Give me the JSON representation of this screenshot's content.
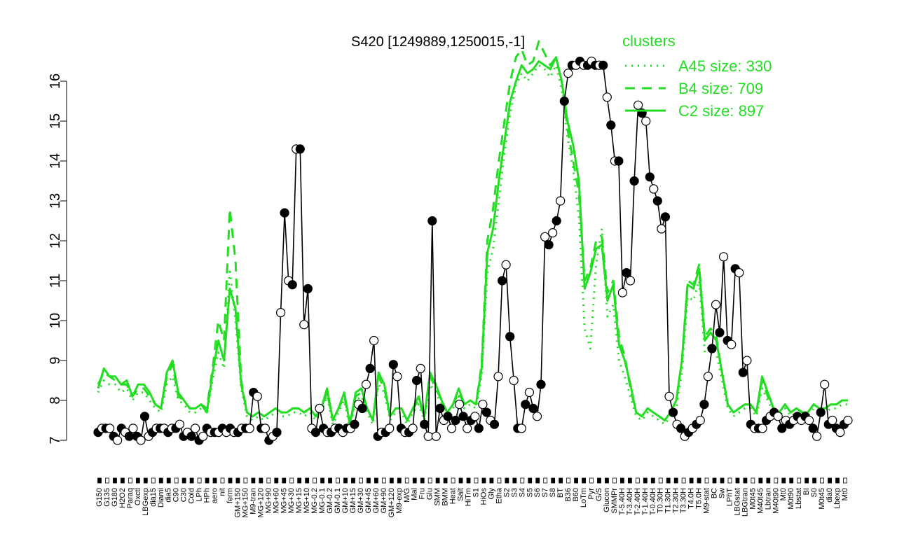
{
  "chart_data": {
    "type": "line",
    "title": "S420 [1249889,1250015,-1]",
    "ylim": [
      7,
      16.5
    ],
    "y_ticks": [
      7,
      8,
      9,
      10,
      11,
      12,
      13,
      14,
      15,
      16
    ],
    "legend": {
      "title": "clusters",
      "placement": "top-right",
      "color": "#22dd22",
      "entries": [
        {
          "label": "A45 size: 330",
          "style": "dotted"
        },
        {
          "label": "B4 size: 709",
          "style": "dashed"
        },
        {
          "label": "C2 size: 897",
          "style": "solid"
        }
      ]
    },
    "x_labels": [
      "G150",
      "G135",
      "G180",
      "H2O2",
      "Paraq",
      "Oxctl",
      "LBGexp",
      "dia15",
      "Diami",
      "dia5",
      "C90",
      "C30",
      "Cold",
      "LPh",
      "HPh",
      "aero",
      "nit",
      "ferm",
      "GM+150",
      "MG+150",
      "M9-tran",
      "MG+120",
      "MG+90",
      "MG+60",
      "MG+45",
      "MG+30",
      "MG+15",
      "MG+10",
      "MG-0.2",
      "MG-0.1",
      "GM-0.2",
      "GM-0.1",
      "GM+10",
      "GM+15",
      "GM+30",
      "GM+45",
      "GM+60",
      "GM+90",
      "GM+120",
      "M9-exp",
      "M/G",
      "Mal",
      "Fru",
      "Glu",
      "SMM",
      "BMM",
      "Heat",
      "Salt",
      "HiTm",
      "S1",
      "HiOs",
      "Gly",
      "Etha",
      "S2",
      "S3",
      "S4",
      "S5",
      "S6",
      "S7",
      "S8",
      "BT",
      "B36",
      "B60",
      "LoTm",
      "Pyr",
      "G/S",
      "Glucon",
      "SMMPr",
      "T-5.40H",
      "T-3.40H",
      "T-2.40H",
      "T-1.40H",
      "T-0.40H",
      "T0.30H",
      "T1.30H",
      "T2.30H",
      "T3.30H",
      "T4.0H",
      "T5.0H",
      "M9-stat",
      "BC",
      "Sw",
      "LPhT",
      "LBGstat",
      "LBGtran",
      "M0t45",
      "M40t45",
      "Lbtran",
      "M40t90",
      "Mt0",
      "M0t90",
      "Lbstat",
      "BI",
      "S0",
      "M0t45",
      "dia0",
      "Lbexp",
      "Mt0"
    ],
    "series": [
      {
        "name": "S420",
        "color": "#000000",
        "values": [
          7.2,
          7.3,
          7.3,
          7.3,
          7.1,
          7.0,
          7.3,
          7.2,
          7.1,
          7.3,
          7.1,
          7.0,
          7.6,
          7.1,
          7.2,
          7.3,
          7.3,
          7.3,
          7.2,
          7.3,
          7.3,
          7.4,
          7.1,
          7.2,
          7.1,
          7.3,
          7.0,
          7.1,
          7.3,
          7.2,
          7.2,
          7.2,
          7.3,
          7.2,
          7.3,
          7.2,
          7.2,
          7.3,
          7.3,
          7.3,
          8.2,
          8.1,
          7.3,
          7.3,
          7.0,
          7.1,
          7.2,
          10.2,
          12.7,
          11.0,
          10.9,
          14.3,
          14.3,
          9.9,
          10.8,
          7.3,
          7.2,
          7.8,
          7.3,
          7.2,
          7.2,
          7.3,
          7.3,
          7.2,
          7.3,
          7.3,
          7.4,
          7.9,
          7.8,
          8.4,
          8.8,
          9.5,
          7.1,
          7.2,
          7.2,
          7.3,
          8.9,
          8.6,
          7.3,
          7.2,
          7.2,
          7.3,
          8.5,
          8.8,
          7.4,
          7.1,
          12.5,
          7.1,
          7.8,
          7.5,
          7.6,
          7.3,
          7.5,
          7.9,
          7.6,
          7.3,
          7.5,
          7.6,
          7.3,
          7.9,
          7.7,
          7.5,
          7.4,
          8.6,
          11.0,
          11.4,
          9.6,
          8.5,
          7.3,
          7.3,
          7.9,
          8.2,
          7.8,
          7.6,
          8.4,
          12.1,
          11.9,
          12.2,
          12.5,
          13.0,
          15.5,
          16.2,
          16.4,
          16.4,
          16.5,
          16.4,
          16.4,
          16.5,
          16.4,
          16.4,
          16.4,
          15.6,
          14.9,
          14.0,
          14.0,
          10.7,
          11.2,
          11.0,
          13.5,
          15.4,
          15.2,
          15.0,
          13.6,
          13.3,
          13.0,
          12.3,
          12.6,
          8.1,
          7.7,
          7.4,
          7.3,
          7.1,
          7.2,
          7.3,
          7.4,
          7.5,
          7.9,
          8.6,
          9.3,
          10.4,
          9.7,
          11.6,
          9.5,
          9.4,
          11.3,
          11.2,
          8.7,
          9.0,
          7.4,
          7.3,
          7.3,
          7.3,
          7.5,
          7.6,
          7.7,
          7.6,
          7.3,
          7.5,
          7.4,
          7.5,
          7.6,
          7.5,
          7.6,
          7.5,
          7.3,
          7.1,
          7.7,
          8.4,
          7.4,
          7.5,
          7.3,
          7.2,
          7.4,
          7.5
        ]
      },
      {
        "name": "C2 size: 897",
        "color": "#22dd22",
        "style": "solid",
        "values": [
          8.3,
          8.8,
          8.6,
          8.6,
          8.4,
          8.5,
          8.1,
          8.4,
          8.4,
          8.2,
          7.9,
          7.8,
          8.7,
          9.0,
          8.2,
          8.0,
          7.8,
          7.8,
          7.9,
          7.7,
          8.7,
          9.5,
          9.0,
          10.8,
          10.3,
          8.4,
          7.7,
          7.6,
          7.7,
          7.6,
          7.7,
          7.8,
          7.7,
          7.7,
          7.8,
          7.8,
          7.7,
          7.8,
          7.6,
          7.8,
          8.3,
          7.5,
          7.8,
          8.2,
          7.4,
          8.2,
          8.3,
          7.8,
          7.5,
          8.7,
          8.4,
          7.6,
          7.8,
          7.8,
          7.5,
          7.8,
          8.1,
          7.6,
          8.7,
          8.4,
          8.0,
          7.7,
          7.9,
          8.3,
          7.9,
          8.0,
          7.9,
          8.8,
          11.7,
          12.3,
          13.5,
          14.5,
          15.5,
          16.0,
          16.4,
          16.2,
          16.3,
          16.5,
          16.4,
          16.3,
          16.6,
          16.0,
          15.0,
          14.4,
          13.5,
          10.8,
          11.2,
          11.8,
          11.9,
          10.5,
          10.9,
          9.4,
          9.0,
          8.4,
          7.7,
          7.6,
          7.8,
          7.7,
          7.6,
          7.5,
          7.7,
          8.0,
          9.0,
          10.9,
          10.8,
          11.3,
          9.5,
          9.7,
          9.5,
          8.7,
          7.9,
          7.7,
          7.8,
          7.9,
          7.9,
          7.7,
          8.6,
          8.2,
          7.8,
          7.7,
          7.9,
          7.7,
          7.8,
          7.7,
          7.7,
          7.9,
          7.8,
          7.8,
          7.9,
          7.9,
          8.0,
          8.0
        ]
      },
      {
        "name": "B4 size: 709",
        "color": "#22dd22",
        "style": "dashed",
        "values": [
          8.4,
          8.7,
          8.6,
          8.5,
          8.4,
          8.4,
          8.1,
          8.3,
          8.3,
          8.1,
          7.9,
          7.8,
          8.6,
          8.9,
          8.1,
          8.0,
          7.8,
          7.8,
          7.9,
          7.8,
          8.8,
          10.0,
          9.5,
          12.8,
          11.5,
          8.5,
          7.7,
          7.6,
          7.7,
          7.6,
          7.7,
          7.8,
          7.7,
          7.7,
          7.8,
          7.8,
          7.7,
          7.8,
          7.6,
          7.8,
          8.2,
          7.5,
          7.8,
          8.1,
          7.4,
          8.1,
          8.2,
          7.8,
          7.5,
          8.6,
          8.3,
          7.6,
          7.8,
          7.8,
          7.5,
          7.8,
          8.0,
          7.6,
          8.6,
          8.3,
          8.0,
          7.7,
          7.9,
          8.2,
          7.9,
          8.0,
          7.9,
          8.9,
          12.0,
          12.8,
          14.0,
          15.0,
          16.0,
          16.6,
          16.8,
          16.4,
          16.5,
          17.0,
          16.7,
          16.4,
          16.6,
          16.0,
          14.8,
          14.0,
          13.2,
          11.0,
          11.3,
          12.0,
          12.1,
          10.7,
          11.0,
          9.6,
          9.1,
          8.3,
          7.7,
          7.6,
          7.8,
          7.7,
          7.6,
          7.5,
          7.7,
          8.0,
          9.0,
          11.0,
          10.9,
          11.4,
          9.6,
          9.8,
          9.6,
          8.7,
          7.9,
          7.7,
          7.8,
          7.9,
          7.9,
          7.7,
          8.5,
          8.1,
          7.8,
          7.7,
          7.9,
          7.7,
          7.8,
          7.7,
          7.7,
          7.9,
          7.8,
          7.8,
          7.9,
          7.9,
          8.0,
          8.0
        ]
      },
      {
        "name": "A45 size: 330",
        "color": "#22dd22",
        "style": "dotted",
        "values": [
          8.2,
          8.5,
          8.4,
          8.4,
          8.2,
          8.3,
          8.0,
          8.2,
          8.2,
          8.0,
          7.8,
          7.7,
          8.4,
          8.6,
          8.0,
          7.9,
          7.7,
          7.7,
          7.8,
          7.7,
          8.5,
          9.2,
          8.8,
          11.3,
          10.0,
          8.3,
          7.6,
          7.5,
          7.6,
          7.5,
          7.6,
          7.7,
          7.6,
          7.6,
          7.7,
          7.7,
          7.6,
          7.7,
          7.5,
          7.7,
          8.1,
          7.4,
          7.7,
          8.0,
          7.3,
          8.0,
          8.1,
          7.7,
          7.4,
          8.4,
          8.2,
          7.5,
          7.7,
          7.7,
          7.4,
          7.7,
          7.9,
          7.5,
          8.4,
          8.2,
          7.9,
          7.6,
          7.8,
          8.1,
          7.8,
          7.9,
          7.8,
          8.6,
          11.2,
          11.8,
          13.0,
          14.2,
          15.2,
          15.9,
          16.2,
          16.0,
          16.2,
          16.4,
          16.3,
          16.1,
          16.4,
          15.8,
          14.6,
          13.8,
          12.6,
          9.8,
          9.3,
          11.4,
          12.3,
          10.1,
          10.4,
          9.0,
          8.6,
          8.1,
          7.6,
          7.5,
          7.7,
          7.6,
          7.5,
          7.4,
          7.6,
          7.8,
          8.7,
          10.6,
          10.5,
          11.0,
          9.2,
          9.4,
          9.2,
          8.5,
          7.8,
          7.6,
          7.7,
          7.8,
          7.8,
          7.6,
          8.3,
          8.0,
          7.7,
          7.6,
          7.8,
          7.6,
          7.7,
          7.6,
          7.6,
          7.8,
          7.7,
          7.7,
          7.8,
          7.8,
          7.9,
          7.9
        ]
      }
    ]
  }
}
